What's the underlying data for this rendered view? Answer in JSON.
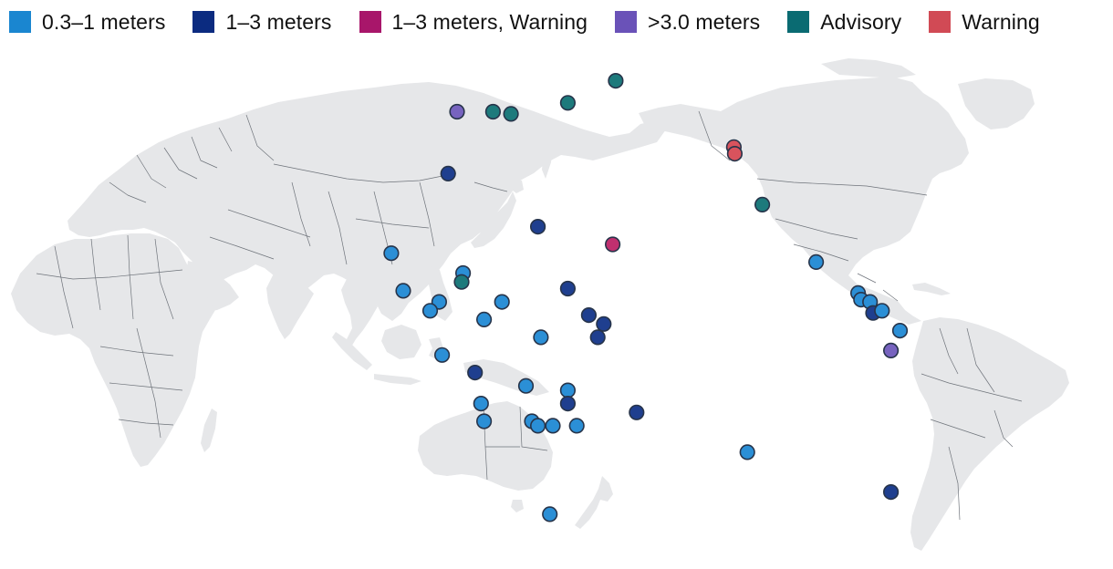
{
  "legend": [
    {
      "key": "c03",
      "label": "0.3–1 meters",
      "color": "#1a86d0"
    },
    {
      "key": "c13",
      "label": "1–3 meters",
      "color": "#0b2b80"
    },
    {
      "key": "c13w",
      "label": "1–3 meters, Warning",
      "color": "#a8166a"
    },
    {
      "key": "c3",
      "label": ">3.0 meters",
      "color": "#6a52b8"
    },
    {
      "key": "adv",
      "label": "Advisory",
      "color": "#0a6b72"
    },
    {
      "key": "warn",
      "label": "Warning",
      "color": "#d14a55"
    }
  ],
  "map": {
    "projection": "Pacific-centered world map",
    "land_color": "#e6e7e9",
    "border_color": "#6e737a",
    "marker_colors": {
      "c03": "#2b8fd6",
      "c13": "#1f3f8f",
      "c13w": "#c0306f",
      "c3": "#7763bf",
      "adv": "#1d7a7c",
      "warn": "#d9535d"
    }
  },
  "sites": [
    {
      "cat": "c3",
      "lon": 143,
      "lat": 50
    },
    {
      "cat": "adv",
      "lon": 155,
      "lat": 50
    },
    {
      "cat": "adv",
      "lon": 161,
      "lat": 49.5
    },
    {
      "cat": "adv",
      "lon": 180,
      "lat": 52
    },
    {
      "cat": "adv",
      "lon": 196,
      "lat": 57
    },
    {
      "cat": "c13",
      "lon": 140,
      "lat": 36
    },
    {
      "cat": "warn",
      "lon": 235.5,
      "lat": 42
    },
    {
      "cat": "warn",
      "lon": 235.8,
      "lat": 40.5
    },
    {
      "cat": "adv",
      "lon": 245,
      "lat": 29
    },
    {
      "cat": "c03",
      "lon": 263,
      "lat": 16
    },
    {
      "cat": "c13",
      "lon": 170,
      "lat": 24
    },
    {
      "cat": "c13w",
      "lon": 195,
      "lat": 20
    },
    {
      "cat": "c03",
      "lon": 121,
      "lat": 18
    },
    {
      "cat": "c03",
      "lon": 125,
      "lat": 9.5
    },
    {
      "cat": "c03",
      "lon": 137,
      "lat": 7
    },
    {
      "cat": "c03",
      "lon": 134,
      "lat": 5
    },
    {
      "cat": "c03",
      "lon": 145,
      "lat": 13.5
    },
    {
      "cat": "adv",
      "lon": 144.5,
      "lat": 11.5
    },
    {
      "cat": "c03",
      "lon": 158,
      "lat": 7
    },
    {
      "cat": "c13",
      "lon": 180,
      "lat": 10
    },
    {
      "cat": "c03",
      "lon": 152,
      "lat": 3
    },
    {
      "cat": "c13",
      "lon": 187,
      "lat": 4
    },
    {
      "cat": "c13",
      "lon": 192,
      "lat": 2
    },
    {
      "cat": "c13",
      "lon": 190,
      "lat": -1
    },
    {
      "cat": "c03",
      "lon": 171,
      "lat": -1
    },
    {
      "cat": "c03",
      "lon": 138,
      "lat": -5
    },
    {
      "cat": "c13",
      "lon": 149,
      "lat": -9
    },
    {
      "cat": "c03",
      "lon": 166,
      "lat": -12
    },
    {
      "cat": "c03",
      "lon": 180,
      "lat": -13
    },
    {
      "cat": "c03",
      "lon": 168,
      "lat": -20
    },
    {
      "cat": "c13",
      "lon": 180,
      "lat": -16
    },
    {
      "cat": "c03",
      "lon": 151,
      "lat": -16
    },
    {
      "cat": "c03",
      "lon": 152,
      "lat": -20
    },
    {
      "cat": "c03",
      "lon": 175,
      "lat": -21
    },
    {
      "cat": "c03",
      "lon": 170,
      "lat": -21
    },
    {
      "cat": "c03",
      "lon": 183,
      "lat": -21
    },
    {
      "cat": "c13",
      "lon": 203,
      "lat": -18
    },
    {
      "cat": "c03",
      "lon": 240,
      "lat": -27
    },
    {
      "cat": "c03",
      "lon": 174,
      "lat": -41
    },
    {
      "cat": "c03",
      "lon": 277,
      "lat": 9
    },
    {
      "cat": "c03",
      "lon": 278,
      "lat": 7.5
    },
    {
      "cat": "c03",
      "lon": 281,
      "lat": 7
    },
    {
      "cat": "c13",
      "lon": 282,
      "lat": 4.5
    },
    {
      "cat": "c03",
      "lon": 285,
      "lat": 5
    },
    {
      "cat": "c03",
      "lon": 291,
      "lat": 0.5
    },
    {
      "cat": "c3",
      "lon": 288,
      "lat": -4
    },
    {
      "cat": "c13",
      "lon": 288,
      "lat": -36
    }
  ]
}
